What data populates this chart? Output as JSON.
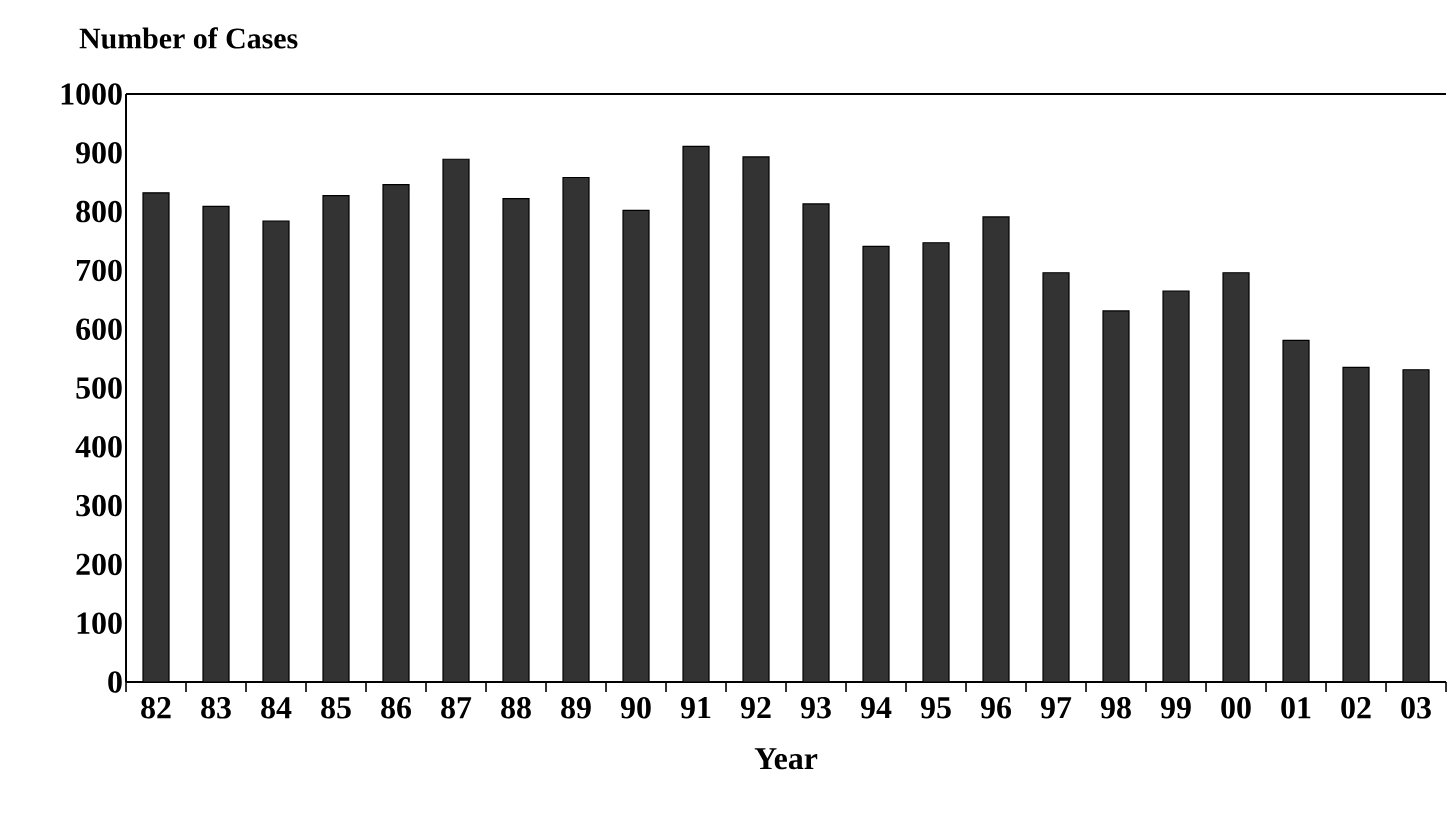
{
  "chart_data": {
    "type": "bar",
    "title": "Number of Cases",
    "xlabel": "Year",
    "categories": [
      "82",
      "83",
      "84",
      "85",
      "86",
      "87",
      "88",
      "89",
      "90",
      "91",
      "92",
      "93",
      "94",
      "95",
      "96",
      "97",
      "98",
      "99",
      "00",
      "01",
      "02",
      "03"
    ],
    "values": [
      832,
      809,
      784,
      827,
      846,
      889,
      822,
      858,
      802,
      911,
      893,
      813,
      741,
      747,
      791,
      696,
      631,
      665,
      696,
      581,
      535,
      531
    ],
    "color": "#333333",
    "ylim": [
      0,
      1000
    ],
    "yticks": [
      0,
      100,
      200,
      300,
      400,
      500,
      600,
      700,
      800,
      900,
      1000
    ]
  }
}
